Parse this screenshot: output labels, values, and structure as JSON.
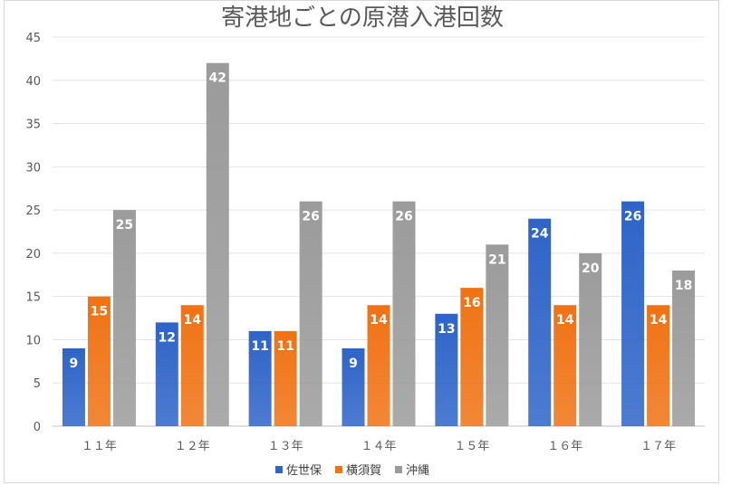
{
  "chart_data": {
    "type": "bar",
    "title": "寄港地ごとの原潜入港回数",
    "categories": [
      "１１年",
      "１２年",
      "１３年",
      "１４年",
      "１５年",
      "１６年",
      "１７年"
    ],
    "series": [
      {
        "name": "佐世保",
        "values": [
          9,
          12,
          11,
          9,
          13,
          24,
          26
        ],
        "color": "#2e64c8"
      },
      {
        "name": "横須賀",
        "values": [
          15,
          14,
          11,
          14,
          16,
          14,
          14
        ],
        "color": "#f07214"
      },
      {
        "name": "沖縄",
        "values": [
          25,
          42,
          26,
          26,
          21,
          20,
          18
        ],
        "color": "#9b9b9b"
      }
    ],
    "yticks": [
      0,
      5,
      10,
      15,
      20,
      25,
      30,
      35,
      40,
      45
    ],
    "ylim": [
      0,
      45
    ],
    "grid": true,
    "legend_position": "bottom"
  }
}
